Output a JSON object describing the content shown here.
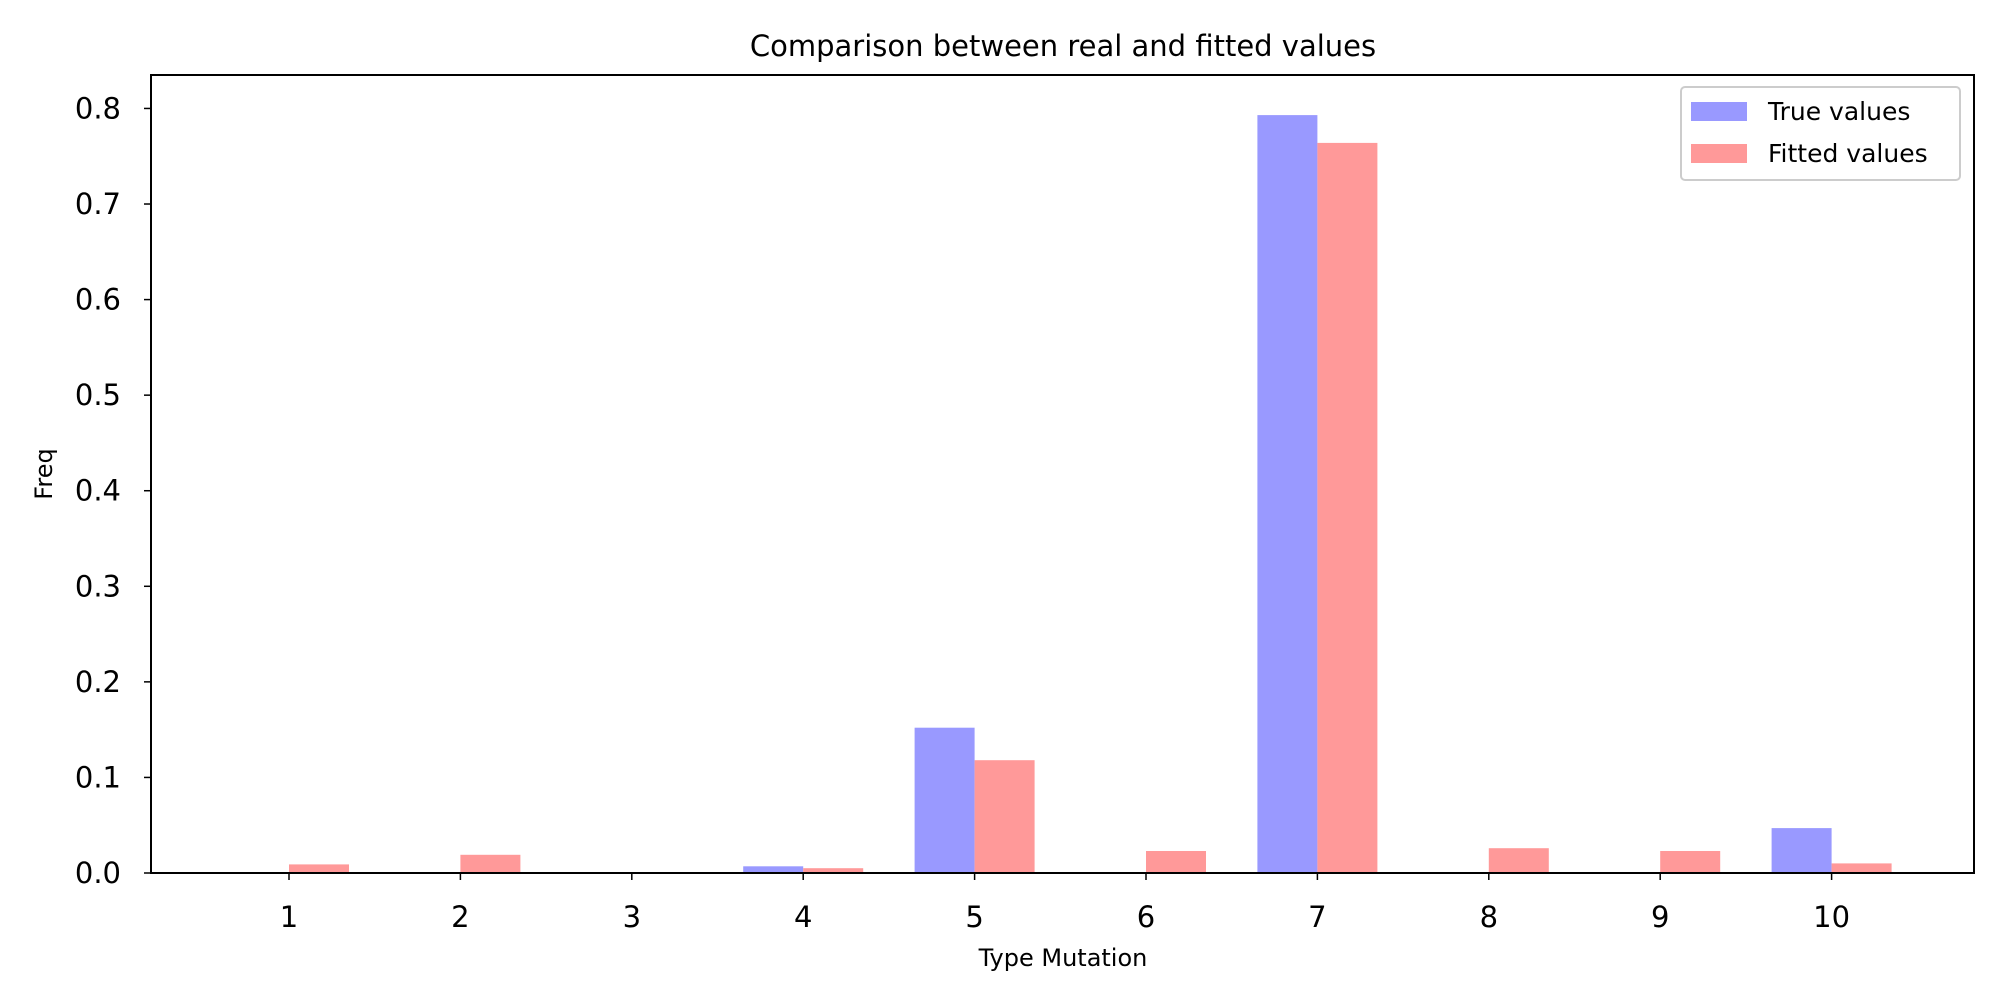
{
  "chart_data": {
    "type": "bar",
    "title": "Comparison between real and fitted values",
    "xlabel": "Type Mutation",
    "ylabel": "Freq",
    "categories": [
      "1",
      "2",
      "3",
      "4",
      "5",
      "6",
      "7",
      "8",
      "9",
      "10"
    ],
    "series": [
      {
        "name": "True values",
        "color": "#9999ff",
        "values": [
          0.0,
          0.0,
          0.0,
          0.007,
          0.152,
          0.0,
          0.793,
          0.0,
          0.0,
          0.047
        ]
      },
      {
        "name": "Fitted values",
        "color": "#ff9999",
        "values": [
          0.009,
          0.019,
          0.0,
          0.005,
          0.118,
          0.023,
          0.764,
          0.026,
          0.023,
          0.01
        ]
      }
    ],
    "ylim": [
      0.0,
      0.835
    ],
    "yticks": [
      "0.0",
      "0.1",
      "0.2",
      "0.3",
      "0.4",
      "0.5",
      "0.6",
      "0.7",
      "0.8"
    ],
    "grid": false,
    "legend_position": "top-right"
  }
}
